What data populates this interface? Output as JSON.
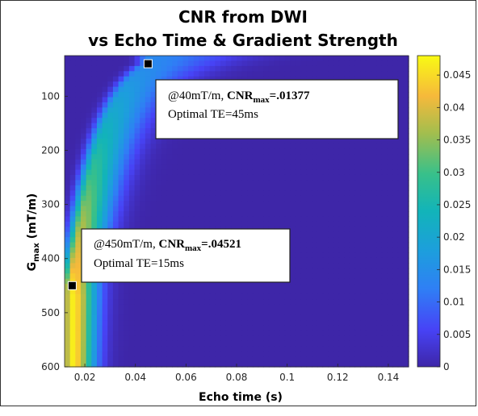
{
  "chart_data": {
    "type": "heatmap",
    "title_lines": [
      "CNR from DWI",
      "vs Echo Time & Gradient Strength"
    ],
    "xlabel": "Echo time (s)",
    "ylabel": {
      "main": "G",
      "sub": "max",
      "rest": " (mT/m)"
    },
    "xlim": [
      0.012,
      0.148
    ],
    "ylim": [
      600,
      25
    ],
    "x_ticks": [
      "0.02",
      "0.04",
      "0.06",
      "0.08",
      "0.1",
      "0.12",
      "0.14"
    ],
    "x_tick_values": [
      0.02,
      0.04,
      0.06,
      0.08,
      0.1,
      0.12,
      0.14
    ],
    "y_ticks": [
      "100",
      "200",
      "300",
      "400",
      "500",
      "600"
    ],
    "y_tick_values": [
      100,
      200,
      300,
      400,
      500,
      600
    ],
    "colorbar": {
      "colormap": "parula",
      "min": 0,
      "max": 0.048,
      "ticks": [
        "0",
        "0.005",
        "0.01",
        "0.015",
        "0.02",
        "0.025",
        "0.03",
        "0.035",
        "0.04",
        "0.045"
      ],
      "tick_values": [
        0,
        0.005,
        0.01,
        0.015,
        0.02,
        0.025,
        0.03,
        0.035,
        0.04,
        0.045
      ]
    },
    "grid": false,
    "markers": [
      {
        "name": "max-40",
        "te": 0.045,
        "g": 40
      },
      {
        "name": "max-450",
        "te": 0.015,
        "g": 450
      }
    ],
    "annotations": [
      {
        "name": "annotation-40",
        "prefix": "@40mT/m, ",
        "bold_main": "CNR",
        "bold_sub": "max",
        "bold_value": "=.01377",
        "line2": "Optimal TE=45ms"
      },
      {
        "name": "annotation-450",
        "prefix": "@450mT/m, ",
        "bold_main": "CNR",
        "bold_sub": "max",
        "bold_value": "=.04521",
        "line2": "Optimal TE=15ms"
      }
    ]
  }
}
